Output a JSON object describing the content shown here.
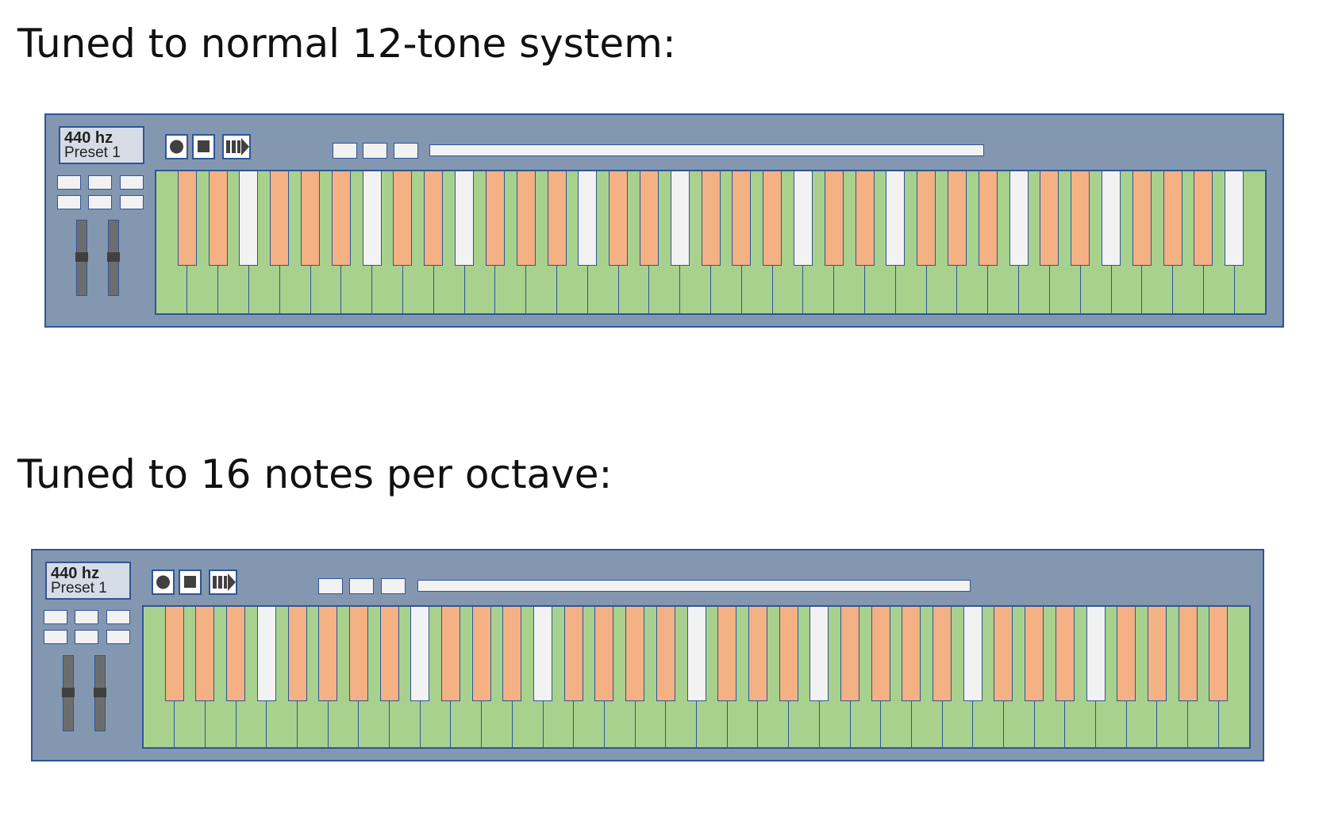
{
  "headings": [
    "Tuned to normal 12-tone system:",
    "Tuned to 16 notes per octave:"
  ],
  "keyboards": [
    {
      "display_frequency": "440 hz",
      "display_preset": "Preset 1",
      "transport_icons": [
        "record-icon",
        "stop-icon",
        "play-icon"
      ],
      "white_key_count": 36,
      "black_keys": "OOWOOOWOOWOOOWOOWOOOWOOWOOOWOOWOOOW"
    },
    {
      "display_frequency": "440 hz",
      "display_preset": "Preset 1",
      "transport_icons": [
        "record-icon",
        "stop-icon",
        "play-icon"
      ],
      "white_key_count": 36,
      "black_keys": "OOOWOOOOWOOOWOOOOWOOOWOOOOWOOOWOOOO"
    }
  ],
  "colors": {
    "panel": "#8497b0",
    "outline": "#2f5597",
    "white_key": "#a9d18e",
    "black_key_sharp": "#f4b183",
    "black_key_neutral": "#f2f2f2",
    "display": "#d6dce5",
    "slider": "#6d6d6d",
    "slider_handle": "#404040"
  }
}
